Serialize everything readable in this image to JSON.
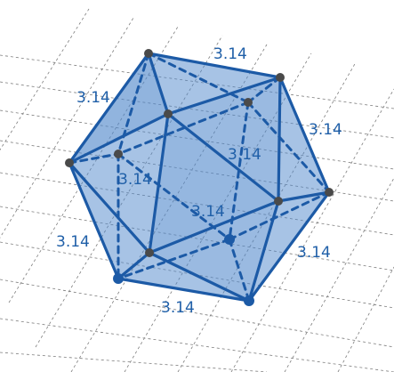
{
  "edge_labels": [
    {
      "id": "top",
      "text": "3.14"
    },
    {
      "id": "upper-left",
      "text": "3.14"
    },
    {
      "id": "upper-right",
      "text": "3.14"
    },
    {
      "id": "center",
      "text": "3.14"
    },
    {
      "id": "mid-left",
      "text": "3.14"
    },
    {
      "id": "mid-center",
      "text": "3.14"
    },
    {
      "id": "lower-left",
      "text": "3.14"
    },
    {
      "id": "lower-right",
      "text": "3.14"
    },
    {
      "id": "bottom",
      "text": "3.14"
    }
  ],
  "colors": {
    "edge": "#1c5aa6",
    "face": "#4f88cc",
    "vertex": "#4a4a4a",
    "label": "#1f5fa8",
    "grid": "#7d7d7d"
  }
}
